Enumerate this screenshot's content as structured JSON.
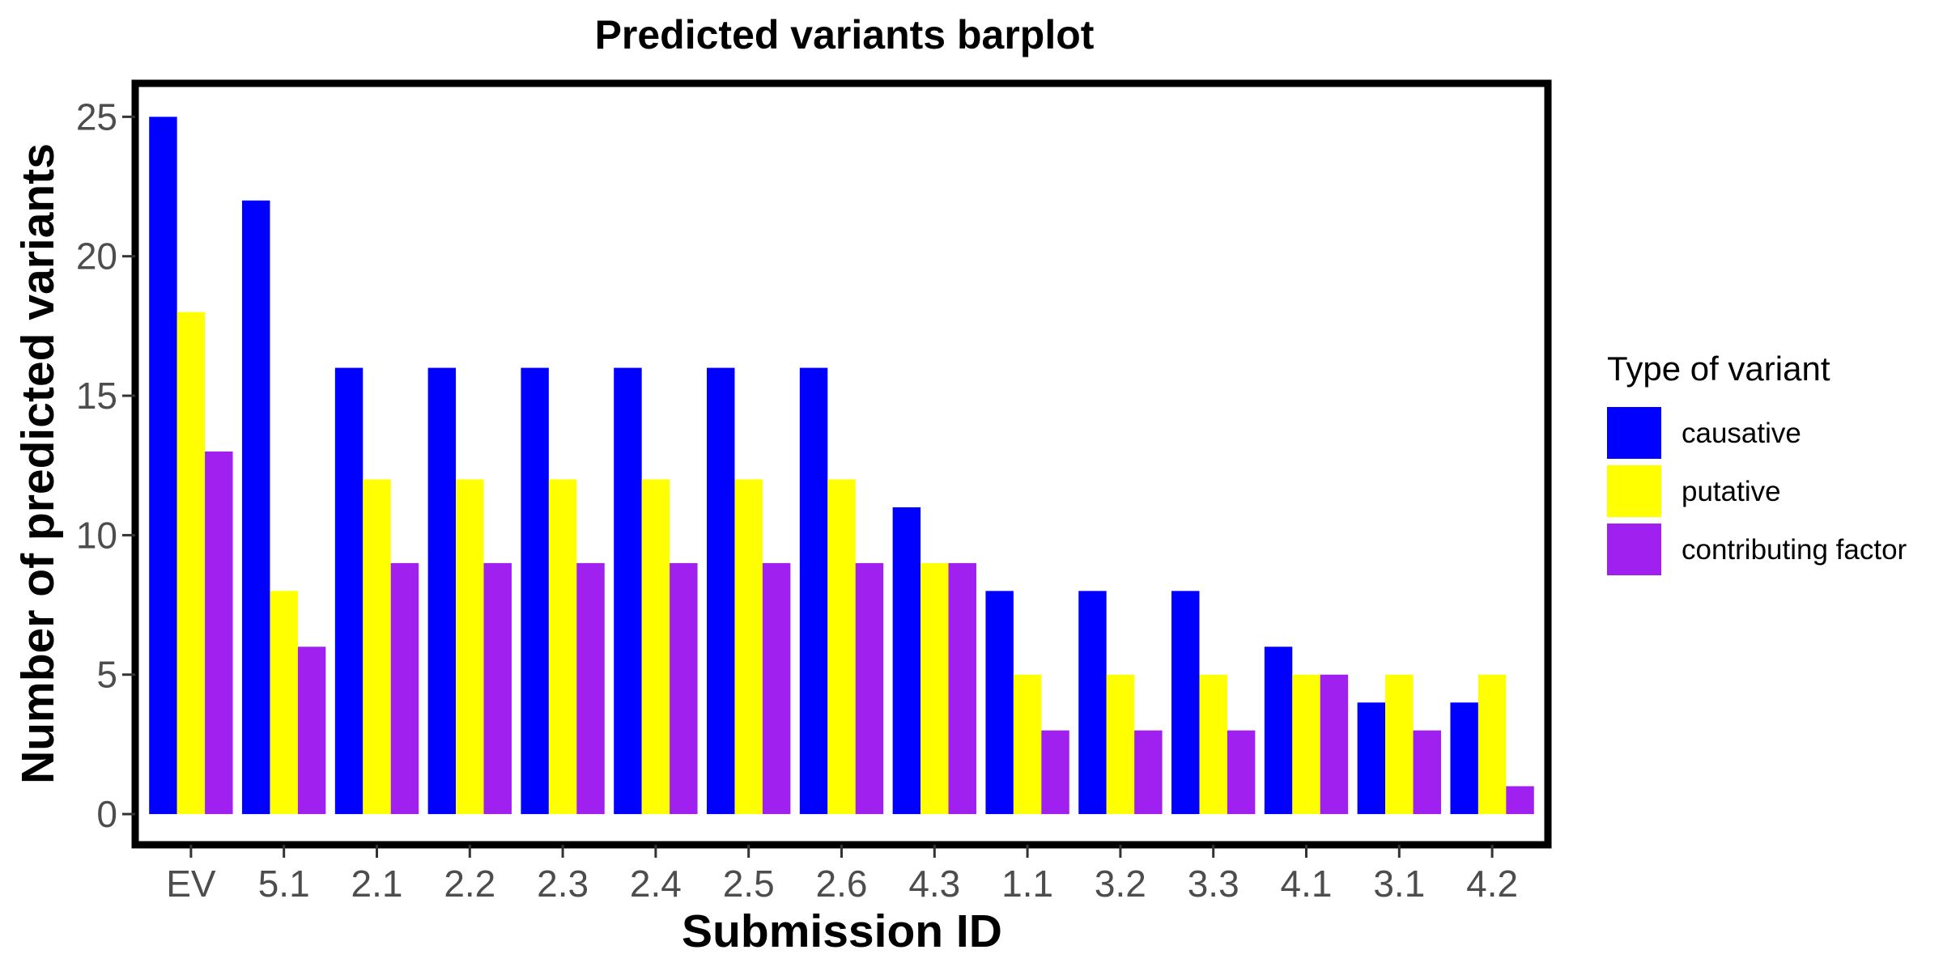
{
  "chart_data": {
    "type": "bar",
    "title": "Predicted variants barplot",
    "xlabel": "Submission ID",
    "ylabel": "Number of predicted variants",
    "categories": [
      "EV",
      "5.1",
      "2.1",
      "2.2",
      "2.3",
      "2.4",
      "2.5",
      "2.6",
      "4.3",
      "1.1",
      "3.2",
      "3.3",
      "4.1",
      "3.1",
      "4.2"
    ],
    "series": [
      {
        "name": "causative",
        "color": "#0000FF",
        "values": [
          25,
          22,
          16,
          16,
          16,
          16,
          16,
          16,
          11,
          8,
          8,
          8,
          6,
          4,
          4
        ]
      },
      {
        "name": "putative",
        "color": "#FFFF00",
        "values": [
          18,
          8,
          12,
          12,
          12,
          12,
          12,
          12,
          9,
          5,
          5,
          5,
          5,
          5,
          5
        ]
      },
      {
        "name": "contributing factor",
        "color": "#A020F0",
        "values": [
          13,
          6,
          9,
          9,
          9,
          9,
          9,
          9,
          9,
          3,
          3,
          3,
          5,
          3,
          1
        ]
      }
    ],
    "yticks": [
      0,
      5,
      10,
      15,
      20,
      25
    ],
    "ylim": [
      -1.1,
      26.2
    ],
    "grid": false,
    "legend": {
      "title": "Type of variant",
      "position": "right"
    }
  }
}
